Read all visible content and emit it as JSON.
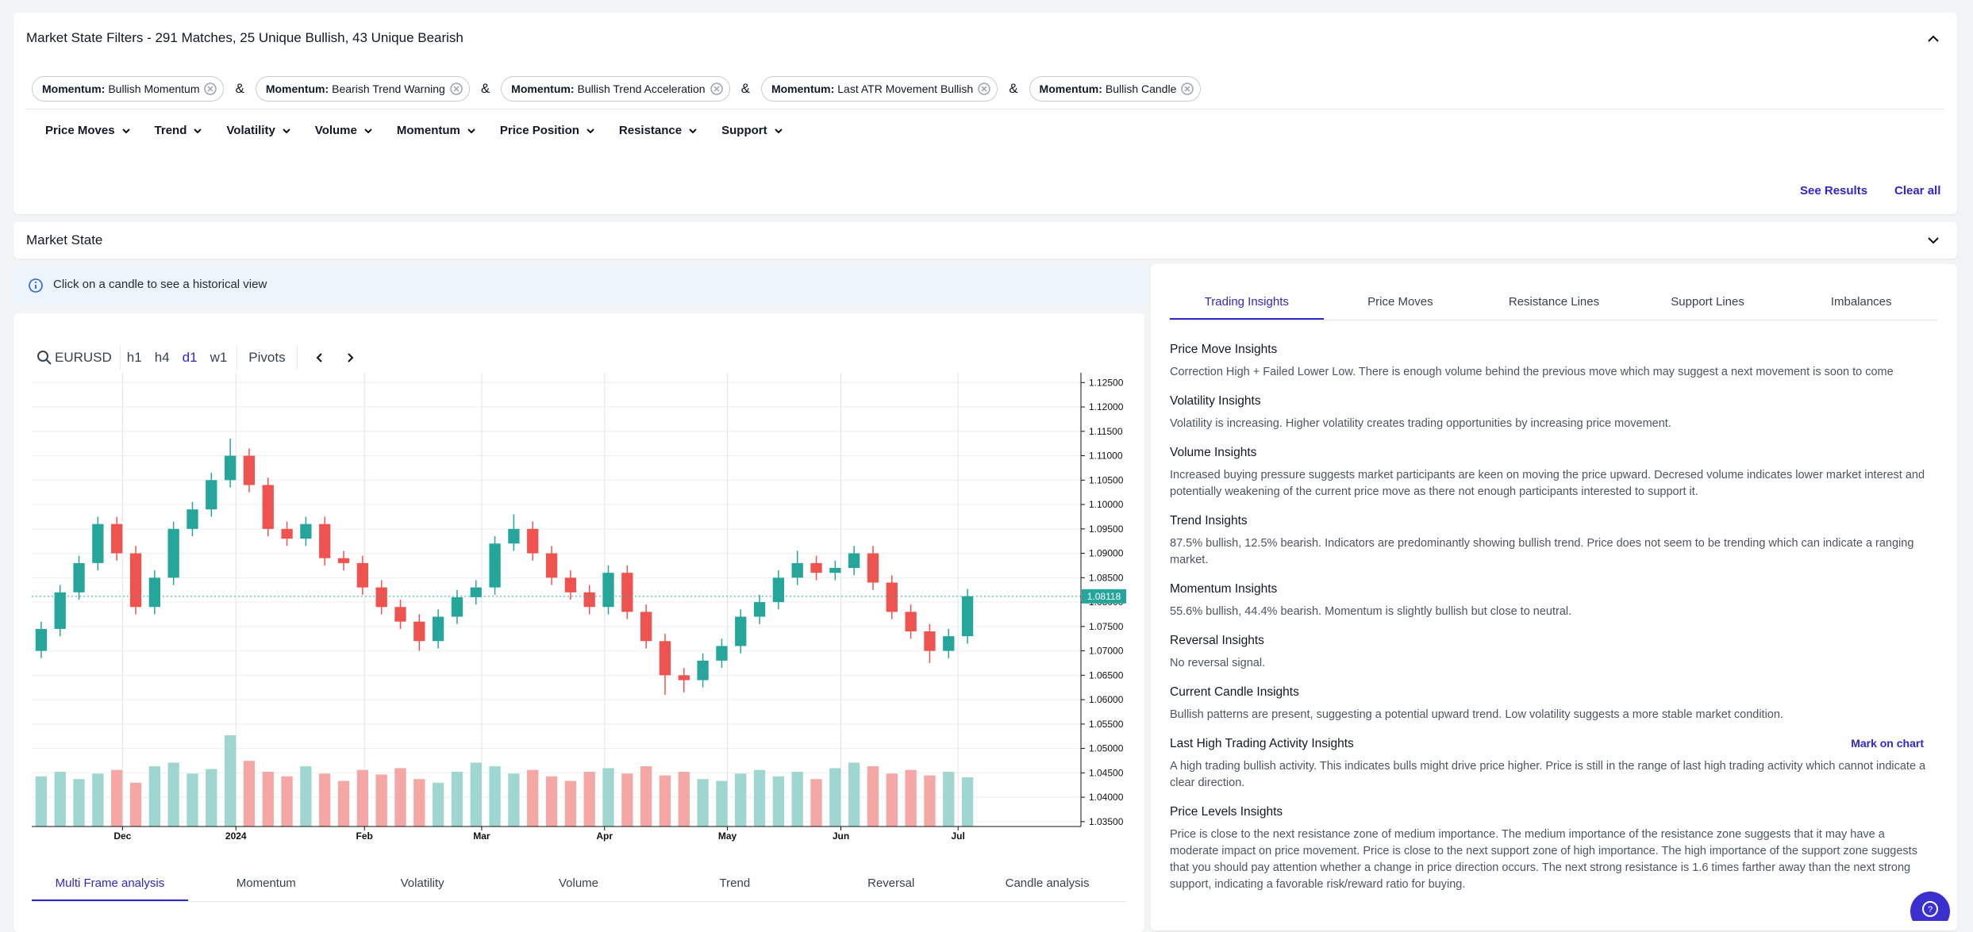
{
  "filters": {
    "title": "Market State Filters - 291 Matches, 25 Unique Bullish, 43 Unique Bearish",
    "chips": [
      {
        "group": "Momentum:",
        "label": "Bullish Momentum"
      },
      {
        "group": "Momentum:",
        "label": "Bearish Trend Warning"
      },
      {
        "group": "Momentum:",
        "label": "Bullish Trend Acceleration"
      },
      {
        "group": "Momentum:",
        "label": "Last ATR Movement Bullish"
      },
      {
        "group": "Momentum:",
        "label": "Bullish Candle"
      }
    ],
    "joiner": "&",
    "menus": [
      "Price Moves",
      "Trend",
      "Volatility",
      "Volume",
      "Momentum",
      "Price Position",
      "Resistance",
      "Support"
    ],
    "see_results": "See Results",
    "clear_all": "Clear all"
  },
  "market_state": "Market State",
  "info": "Click on a candle to see a historical view",
  "toolbar": {
    "symbol": "EURUSD",
    "timeframes": [
      "h1",
      "h4",
      "d1",
      "w1"
    ],
    "active_timeframe": 2,
    "pivots": "Pivots"
  },
  "chart_data": {
    "type": "candlestick",
    "open": [
      1.07,
      1.0745,
      1.082,
      1.088,
      1.096,
      1.09,
      1.079,
      1.085,
      1.095,
      1.099,
      1.105,
      1.11,
      1.104,
      1.095,
      1.093,
      1.096,
      1.089,
      1.088,
      1.083,
      1.079,
      1.076,
      1.072,
      1.077,
      1.081,
      1.083,
      1.092,
      1.095,
      1.09,
      1.085,
      1.082,
      1.079,
      1.086,
      1.078,
      1.072,
      1.065,
      1.064,
      1.068,
      1.071,
      1.077,
      1.08,
      1.085,
      1.088,
      1.086,
      1.087,
      1.09,
      1.084,
      1.078,
      1.074,
      1.07,
      1.073
    ],
    "high": [
      1.076,
      1.0835,
      1.0895,
      1.0975,
      1.0975,
      1.0915,
      1.0865,
      1.0965,
      1.1005,
      1.1065,
      1.1135,
      1.1115,
      1.1055,
      1.0965,
      1.0975,
      1.0975,
      1.0905,
      1.0895,
      1.0845,
      1.0805,
      1.0775,
      1.0785,
      1.0825,
      1.0845,
      1.0935,
      1.098,
      1.0965,
      1.0915,
      1.0865,
      1.0835,
      1.0875,
      1.0875,
      1.0795,
      1.0735,
      1.0665,
      1.0695,
      1.0725,
      1.0785,
      1.0815,
      1.0865,
      1.0905,
      1.0895,
      1.0885,
      1.0915,
      1.0915,
      1.0855,
      1.0795,
      1.0755,
      1.0745,
      1.0827
    ],
    "low": [
      1.0685,
      1.073,
      1.0805,
      1.0865,
      1.0885,
      1.0775,
      1.0775,
      1.0835,
      1.0935,
      1.0975,
      1.1035,
      1.1025,
      1.0935,
      1.0915,
      1.0915,
      1.0875,
      1.0865,
      1.0815,
      1.0775,
      1.0745,
      1.07,
      1.0705,
      1.0755,
      1.0795,
      1.0815,
      1.0905,
      1.0885,
      1.0835,
      1.0805,
      1.0775,
      1.0775,
      1.0765,
      1.0705,
      1.061,
      1.0615,
      1.0625,
      1.0665,
      1.0695,
      1.0755,
      1.0785,
      1.0835,
      1.0845,
      1.0845,
      1.0855,
      1.0825,
      1.0765,
      1.0725,
      1.0675,
      1.0685,
      1.0715
    ],
    "close": [
      1.0745,
      1.082,
      1.088,
      1.096,
      1.09,
      1.079,
      1.085,
      1.095,
      1.099,
      1.105,
      1.11,
      1.104,
      1.095,
      1.093,
      1.096,
      1.089,
      1.088,
      1.083,
      1.079,
      1.076,
      1.072,
      1.077,
      1.081,
      1.083,
      1.092,
      1.095,
      1.09,
      1.085,
      1.082,
      1.079,
      1.086,
      1.078,
      1.072,
      1.065,
      1.064,
      1.068,
      1.071,
      1.077,
      1.08,
      1.085,
      1.088,
      1.086,
      1.087,
      1.09,
      1.084,
      1.078,
      1.074,
      1.07,
      1.073,
      1.0812
    ],
    "volume": [
      55,
      60,
      52,
      58,
      62,
      48,
      66,
      70,
      58,
      63,
      100,
      72,
      60,
      55,
      66,
      58,
      50,
      62,
      57,
      64,
      52,
      48,
      60,
      70,
      66,
      58,
      62,
      55,
      50,
      60,
      64,
      58,
      66,
      56,
      60,
      52,
      50,
      58,
      62,
      55,
      60,
      52,
      64,
      70,
      66,
      58,
      62,
      56,
      60,
      54
    ],
    "up_color": "#26a69a",
    "down_color": "#ef5350",
    "volume_up_color": "#9fd6cf",
    "volume_down_color": "#f4a7a5",
    "last_price": 1.08118,
    "last_price_color": "#26a69a",
    "grid": true,
    "xlim": [
      -0.5,
      55
    ],
    "xticks": [
      {
        "value": 4.3,
        "label": "Dec"
      },
      {
        "value": 10.3,
        "label": "2024"
      },
      {
        "value": 17.1,
        "label": "Feb"
      },
      {
        "value": 23.3,
        "label": "Mar"
      },
      {
        "value": 29.8,
        "label": "Apr"
      },
      {
        "value": 36.3,
        "label": "May"
      },
      {
        "value": 42.3,
        "label": "Jun"
      },
      {
        "value": 48.5,
        "label": "Jul"
      }
    ],
    "ylim": [
      1.034,
      1.127
    ],
    "yticks": [
      {
        "value": 1.035,
        "label": "1.03500"
      },
      {
        "value": 1.04,
        "label": "1.04000"
      },
      {
        "value": 1.045,
        "label": "1.04500"
      },
      {
        "value": 1.05,
        "label": "1.05000"
      },
      {
        "value": 1.055,
        "label": "1.05500"
      },
      {
        "value": 1.06,
        "label": "1.06000"
      },
      {
        "value": 1.065,
        "label": "1.06500"
      },
      {
        "value": 1.07,
        "label": "1.07000"
      },
      {
        "value": 1.075,
        "label": "1.07500"
      },
      {
        "value": 1.08,
        "label": "1.08000"
      },
      {
        "value": 1.085,
        "label": "1.08500"
      },
      {
        "value": 1.09,
        "label": "1.09000"
      },
      {
        "value": 1.095,
        "label": "1.09500"
      },
      {
        "value": 1.1,
        "label": "1.10000"
      },
      {
        "value": 1.105,
        "label": "1.10500"
      },
      {
        "value": 1.11,
        "label": "1.11000"
      },
      {
        "value": 1.115,
        "label": "1.11500"
      },
      {
        "value": 1.12,
        "label": "1.12000"
      },
      {
        "value": 1.125,
        "label": "1.12500"
      }
    ]
  },
  "analysis_tabs": [
    "Multi Frame analysis",
    "Momentum",
    "Volatility",
    "Volume",
    "Trend",
    "Reversal",
    "Candle analysis"
  ],
  "analysis_active": 0,
  "insight_tabs": [
    "Trading Insights",
    "Price Moves",
    "Resistance Lines",
    "Support Lines",
    "Imbalances"
  ],
  "insight_active": 0,
  "insights": [
    {
      "title": "Price Move Insights",
      "text": "Correction High + Failed Lower Low. There is enough volume behind the previous move which may suggest a next movement is soon to come"
    },
    {
      "title": "Volatility Insights",
      "text": "Volatility is increasing. Higher volatility creates trading opportunities by increasing price movement."
    },
    {
      "title": "Volume Insights",
      "text": "Increased buying pressure suggests market participants are keen on moving the price upward. Decresed volume indicates lower market interest and potentially weakening of the current price move as there not enough participants interested to support it."
    },
    {
      "title": "Trend Insights",
      "text": "87.5% bullish, 12.5% bearish. Indicators are predominantly showing bullish trend. Price does not seem to be trending which can indicate a ranging market."
    },
    {
      "title": "Momentum Insights",
      "text": "55.6% bullish, 44.4% bearish. Momentum is slightly bullish but close to neutral."
    },
    {
      "title": "Reversal Insights",
      "text": "No reversal signal."
    },
    {
      "title": "Current Candle Insights",
      "text": "Bullish patterns are present, suggesting a potential upward trend. Low volatility suggests a more stable market condition."
    },
    {
      "title": "Last High Trading Activity Insights",
      "action": "Mark on chart",
      "text": "A high trading bullish activity. This indicates bulls might drive price higher. Price is still in the range of last high trading activity which cannot indicate a clear direction."
    },
    {
      "title": "Price Levels Insights",
      "text": "Price is close to the next resistance zone of medium importance. The medium importance of the resistance zone suggests that it may have a moderate impact on price movement. Price is close to the next support zone of high importance. The high importance of the support zone suggests that you should pay attention whether a change in price direction occurs. The next strong resistance is 1.6 times farther away than the next strong support, indicating a favorable risk/reward ratio for buying."
    }
  ]
}
